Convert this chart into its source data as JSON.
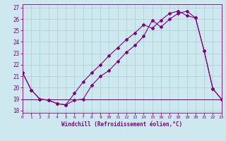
{
  "xlabel": "Windchill (Refroidissement éolien,°C)",
  "bg_color": "#cde8ee",
  "line_color": "#800080",
  "grid_color": "#aacdd4",
  "x_ticks": [
    0,
    1,
    2,
    3,
    4,
    5,
    6,
    7,
    8,
    9,
    10,
    11,
    12,
    13,
    14,
    15,
    16,
    17,
    18,
    19,
    20,
    21,
    22,
    23
  ],
  "y_ticks": [
    18,
    19,
    20,
    21,
    22,
    23,
    24,
    25,
    26,
    27
  ],
  "xlim": [
    0,
    23
  ],
  "ylim": [
    17.8,
    27.3
  ],
  "series1_x": [
    0,
    1,
    2,
    3,
    4,
    5,
    6,
    7,
    8,
    9,
    10,
    11,
    12,
    13,
    14,
    15,
    16,
    17,
    18,
    19,
    20,
    21,
    22,
    23
  ],
  "series1_y": [
    21.3,
    19.8,
    19.0,
    18.9,
    18.6,
    18.5,
    18.9,
    19.0,
    20.2,
    21.0,
    21.5,
    22.3,
    23.1,
    23.7,
    24.5,
    25.9,
    25.3,
    26.0,
    26.5,
    26.7,
    26.1,
    23.2,
    19.9,
    19.0
  ],
  "series2_x": [
    0,
    1,
    2,
    3,
    4,
    5,
    6,
    7,
    8,
    9,
    10,
    11,
    12,
    13,
    14,
    15,
    16,
    17,
    18,
    19,
    20,
    21,
    22,
    23
  ],
  "series2_y": [
    19.0,
    19.0,
    19.0,
    19.0,
    19.0,
    19.0,
    19.0,
    19.0,
    19.0,
    19.0,
    19.0,
    19.0,
    19.0,
    19.0,
    19.0,
    19.0,
    19.0,
    19.0,
    19.0,
    19.0,
    19.0,
    19.0,
    19.0,
    19.0
  ],
  "series3_x": [
    0,
    1,
    2,
    3,
    4,
    5,
    6,
    7,
    8,
    9,
    10,
    11,
    12,
    13,
    14,
    15,
    16,
    17,
    18,
    19,
    20,
    21,
    22,
    23
  ],
  "series3_y": [
    21.3,
    19.8,
    19.0,
    18.9,
    18.6,
    18.5,
    19.5,
    20.5,
    21.3,
    22.0,
    22.8,
    23.5,
    24.2,
    24.8,
    25.5,
    25.2,
    25.9,
    26.5,
    26.7,
    26.3,
    26.1,
    23.2,
    19.9,
    19.0
  ]
}
